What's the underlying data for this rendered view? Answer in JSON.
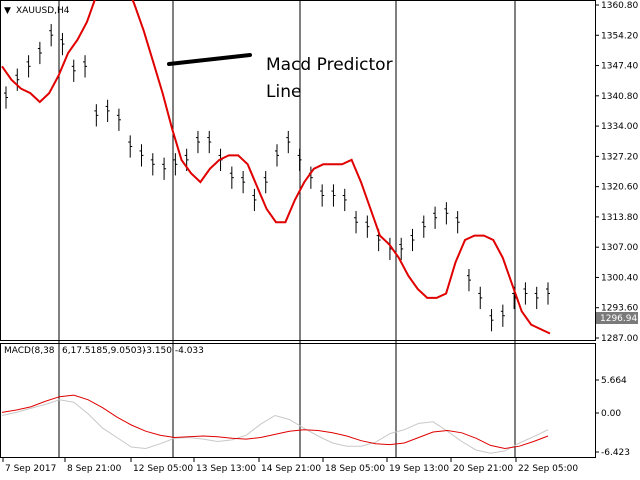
{
  "window": {
    "symbol_label": "XAUUSD,H4",
    "dropdown_glyph": "▼"
  },
  "colors": {
    "predictor_line": "#e00000",
    "macd_signal": "#c8c8c8",
    "bars": "#000000",
    "vertical_lines": "#000000",
    "price_tag_bg": "#7a7a7a",
    "price_tag_text": "#ffffff"
  },
  "annotation": {
    "line1": "Macd Predictor",
    "line2": "Line"
  },
  "price_axis": {
    "ticks": [
      "1360.80",
      "1354.20",
      "1347.40",
      "1340.80",
      "1334.00",
      "1327.20",
      "1320.60",
      "1313.80",
      "1307.00",
      "1300.40",
      "1293.60",
      "1287.00"
    ],
    "current_price": "1296.94"
  },
  "macd_panel": {
    "label": "MACD(8,38",
    "label_rest": "6,17.5185,9.0503)",
    "values": "-3.150 -4.033",
    "ticks": [
      "5.664",
      "0.00",
      "-6.423"
    ]
  },
  "time_axis": {
    "ticks": [
      "7 Sep 2017",
      "8 Sep 21:00",
      "12 Sep 05:00",
      "13 Sep 13:00",
      "14 Sep 21:00",
      "18 Sep 05:00",
      "19 Sep 13:00",
      "20 Sep 21:00",
      "22 Sep 05:00"
    ]
  },
  "chart_data": {
    "type": "line",
    "title": "",
    "symbol": "XAUUSD,H4",
    "ylim": [
      1287.0,
      1362.0
    ],
    "predictor_series": [
      1348,
      1345,
      1343,
      1342,
      1340,
      1342,
      1346,
      1351,
      1354,
      1358,
      1364,
      1368,
      1370,
      1367,
      1362,
      1356,
      1349,
      1342,
      1334,
      1327,
      1324,
      1322,
      1325,
      1327,
      1328,
      1328,
      1326,
      1321,
      1316,
      1313,
      1313,
      1318,
      1322,
      1325,
      1326,
      1326,
      1326,
      1327,
      1322,
      1316,
      1310,
      1308,
      1305,
      1301,
      1298,
      1296,
      1296,
      1297,
      1304,
      1309,
      1310,
      1310,
      1309,
      1305,
      1299,
      1293,
      1290,
      1289,
      1288
    ],
    "ohlc_closes": [
      1341,
      1345,
      1348,
      1351,
      1355,
      1353,
      1347,
      1348,
      1337,
      1338,
      1336,
      1330,
      1328,
      1326,
      1325,
      1326,
      1327,
      1331,
      1331,
      1327,
      1323,
      1322,
      1318,
      1322,
      1328,
      1331,
      1327,
      1323,
      1319,
      1319,
      1318,
      1313,
      1312,
      1309,
      1307,
      1307,
      1309,
      1312,
      1314,
      1315,
      1313,
      1300,
      1296,
      1291,
      1292,
      1296,
      1297,
      1296,
      1297
    ],
    "macd_main": [
      -1,
      -0.7,
      -0.3,
      0.4,
      1.0,
      1.2,
      0.6,
      -0.4,
      -1.6,
      -2.6,
      -3.4,
      -3.9,
      -4.2,
      -4.1,
      -4.0,
      -4.1,
      -4.3,
      -4.4,
      -4.2,
      -3.8,
      -3.4,
      -3.2,
      -3.3,
      -3.6,
      -4.0,
      -4.6,
      -5.0,
      -5.1,
      -4.9,
      -4.2,
      -3.5,
      -3.3,
      -3.6,
      -4.3,
      -5.2,
      -5.6,
      -5.3,
      -4.7,
      -4.0
    ],
    "macd_signal": [
      -1.4,
      -1.0,
      -0.5,
      0.0,
      0.6,
      0.3,
      -1.2,
      -3.0,
      -4.2,
      -5.4,
      -5.6,
      -5.0,
      -4.3,
      -4.2,
      -4.4,
      -4.7,
      -4.5,
      -3.9,
      -2.5,
      -1.4,
      -1.9,
      -3.0,
      -4.0,
      -4.9,
      -5.3,
      -5.3,
      -4.8,
      -3.7,
      -3.2,
      -2.4,
      -2.2,
      -3.4,
      -4.7,
      -5.8,
      -6.2,
      -5.9,
      -4.9,
      -4.1,
      -3.2
    ],
    "macd_ylim": [
      -6.423,
      5.664
    ]
  }
}
